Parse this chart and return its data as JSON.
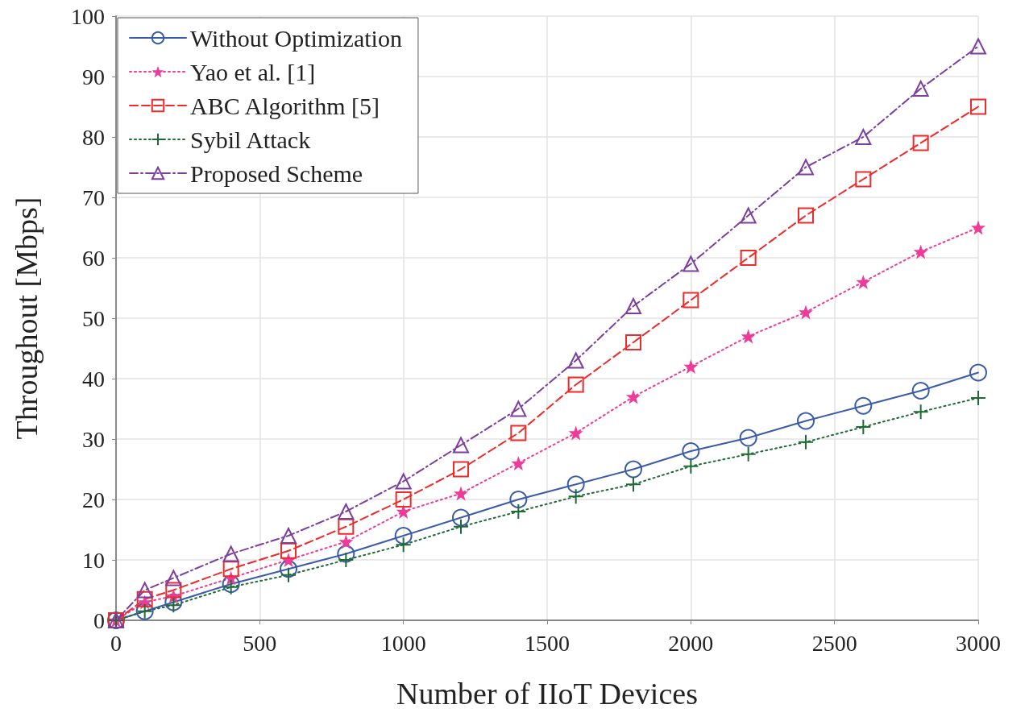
{
  "chart_data": {
    "type": "line",
    "xlabel": "Number of IIoT Devices",
    "ylabel": "Throughout [Mbps]",
    "x": [
      0,
      100,
      200,
      400,
      600,
      800,
      1000,
      1200,
      1400,
      1600,
      1800,
      2000,
      2200,
      2400,
      2600,
      2800,
      3000
    ],
    "series": [
      {
        "name": "Without Optimization",
        "color": "#3a5ba9",
        "marker": "circle",
        "line_style": "solid",
        "values": [
          0,
          1.5,
          3,
          6,
          8.5,
          11,
          14,
          17,
          20,
          22.5,
          25,
          28,
          30.2,
          33,
          35.5,
          38,
          41
        ]
      },
      {
        "name": "Yao et al. [1]",
        "color": "#ee3b9a",
        "marker": "star",
        "line_style": "dotted",
        "values": [
          0,
          3,
          4,
          7,
          10,
          13,
          18,
          21,
          26,
          31,
          37,
          42,
          47,
          51,
          56,
          61,
          65
        ]
      },
      {
        "name": "ABC Algorithm [5]",
        "color": "#ee2a2a",
        "marker": "square",
        "line_style": "dashed",
        "values": [
          0,
          3.5,
          5,
          8.5,
          11.5,
          15.5,
          20,
          25,
          31,
          39,
          46,
          53,
          60,
          67,
          73,
          79,
          85
        ]
      },
      {
        "name": "Sybil Attack",
        "color": "#1f6b35",
        "marker": "cross",
        "line_style": "dotted",
        "values": [
          0,
          1.5,
          2.5,
          5.5,
          7.5,
          10,
          12.5,
          15.5,
          18,
          20.5,
          22.5,
          25.5,
          27.5,
          29.5,
          32,
          34.5,
          36.8
        ]
      },
      {
        "name": "Proposed Scheme",
        "color": "#7c3f9e",
        "marker": "triangle",
        "line_style": "dashdot",
        "values": [
          0,
          5,
          7,
          11,
          14,
          18,
          23,
          29,
          35,
          43,
          52,
          59,
          67,
          75,
          80,
          88,
          95
        ]
      }
    ],
    "xlim": [
      0,
      3000
    ],
    "xticks": [
      0,
      500,
      1000,
      1500,
      2000,
      2500,
      3000
    ],
    "ylim": [
      0,
      100
    ],
    "yticks": [
      0,
      10,
      20,
      30,
      40,
      50,
      60,
      70,
      80,
      90,
      100
    ],
    "grid": true,
    "legend": "top left"
  }
}
